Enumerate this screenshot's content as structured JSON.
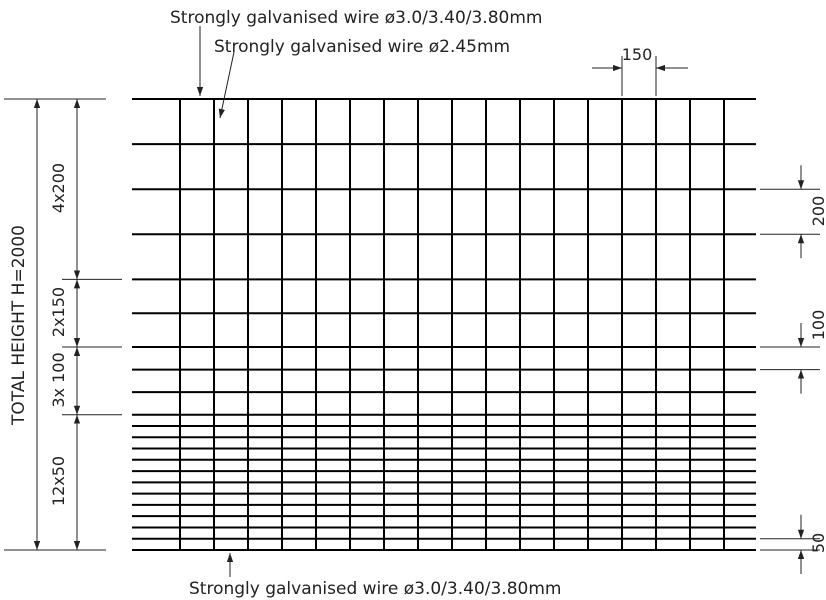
{
  "labels": {
    "top_outer_wire": "Strongly galvanised wire ø3.0/3.40/3.80mm",
    "inner_wire": "Strongly galvanised wire ø2.45mm",
    "bottom_wire": "Strongly galvanised wire ø3.0/3.40/3.80mm",
    "total_height": "TOTAL HEIGHT H=2000",
    "zone_4x200": "4x200",
    "zone_2x150": "2x150",
    "zone_3x100": "3x 100",
    "zone_12x50": "12x50",
    "spacing_horizontal": "150",
    "spacing_200": "200",
    "spacing_100": "100",
    "spacing_50": "50"
  },
  "mesh": {
    "total_height_mm": 2000,
    "vertical_wire_spacing_mm": 150,
    "zones_top_to_bottom": [
      {
        "count": 4,
        "spacing_mm": 200
      },
      {
        "count": 2,
        "spacing_mm": 150
      },
      {
        "count": 3,
        "spacing_mm": 100
      },
      {
        "count": 12,
        "spacing_mm": 50
      }
    ],
    "vertical_wire_count": 17
  },
  "colors": {
    "wire": "#000000",
    "dimension": "#222222"
  }
}
